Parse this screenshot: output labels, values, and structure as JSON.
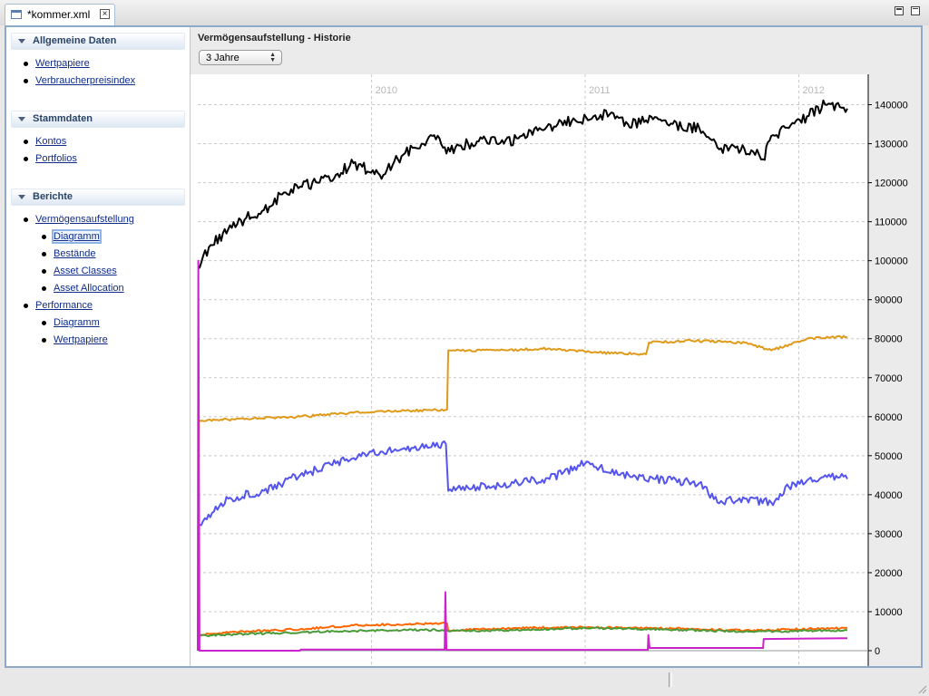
{
  "tab": {
    "label": "*kommer.xml"
  },
  "sidebar": {
    "sections": [
      {
        "label": "Allgemeine Daten",
        "items": [
          {
            "label": "Wertpapiere"
          },
          {
            "label": "Verbraucherpreisindex"
          }
        ]
      },
      {
        "label": "Stammdaten",
        "items": [
          {
            "label": "Kontos"
          },
          {
            "label": "Portfolios"
          }
        ]
      },
      {
        "label": "Berichte",
        "items": [
          {
            "label": "Vermögensaufstellung"
          },
          {
            "label": "Diagramm",
            "selected": true
          },
          {
            "label": "Bestände"
          },
          {
            "label": "Asset Classes"
          },
          {
            "label": "Asset Allocation"
          },
          {
            "label": "Performance"
          },
          {
            "label": "Diagramm"
          },
          {
            "label": "Wertpapiere"
          }
        ]
      }
    ]
  },
  "main": {
    "title": "Vermögensaufstellung - Historie",
    "period_select": {
      "value": "3 Jahre"
    }
  },
  "chart_data": {
    "type": "line",
    "title": "",
    "xlabel": "",
    "ylabel": "",
    "x_range": [
      "2009-03-10",
      "2012-03-24"
    ],
    "ylim": [
      0,
      145000
    ],
    "y_ticks": [
      0,
      10000,
      20000,
      30000,
      40000,
      50000,
      60000,
      70000,
      80000,
      90000,
      100000,
      110000,
      120000,
      130000,
      140000
    ],
    "x_tick_labels": [
      {
        "date": "2010-01-01",
        "label": "2010"
      },
      {
        "date": "2011-01-01",
        "label": "2011"
      },
      {
        "date": "2012-01-01",
        "label": "2012"
      }
    ],
    "grid": true,
    "y_axis_side": "right",
    "series": [
      {
        "color": "#000000",
        "points": [
          [
            "2009-03-10",
            98000
          ],
          [
            "2009-04-01",
            104000
          ],
          [
            "2009-05-01",
            108000
          ],
          [
            "2009-06-01",
            111000
          ],
          [
            "2009-07-01",
            113000
          ],
          [
            "2009-08-01",
            117000
          ],
          [
            "2009-09-01",
            119000
          ],
          [
            "2009-10-01",
            120000
          ],
          [
            "2009-11-01",
            122000
          ],
          [
            "2009-12-01",
            125000
          ],
          [
            "2010-01-15",
            122000
          ],
          [
            "2010-02-15",
            126000
          ],
          [
            "2010-03-15",
            129000
          ],
          [
            "2010-04-15",
            132000
          ],
          [
            "2010-05-15",
            128000
          ],
          [
            "2010-06-15",
            130000
          ],
          [
            "2010-07-15",
            131000
          ],
          [
            "2010-08-15",
            130000
          ],
          [
            "2010-09-15",
            132000
          ],
          [
            "2010-10-15",
            134000
          ],
          [
            "2010-11-15",
            135000
          ],
          [
            "2010-12-15",
            136000
          ],
          [
            "2011-01-15",
            137000
          ],
          [
            "2011-02-15",
            138000
          ],
          [
            "2011-03-15",
            135000
          ],
          [
            "2011-04-15",
            136000
          ],
          [
            "2011-05-15",
            136000
          ],
          [
            "2011-06-15",
            134000
          ],
          [
            "2011-07-15",
            134000
          ],
          [
            "2011-08-15",
            129000
          ],
          [
            "2011-09-15",
            129000
          ],
          [
            "2011-10-15",
            128000
          ],
          [
            "2011-11-01",
            126000
          ],
          [
            "2011-11-15",
            132000
          ],
          [
            "2011-12-15",
            134000
          ],
          [
            "2012-01-15",
            137000
          ],
          [
            "2012-02-15",
            140000
          ],
          [
            "2012-03-24",
            139000
          ]
        ]
      },
      {
        "color": "#e09a1a",
        "points": [
          [
            "2009-03-10",
            0
          ],
          [
            "2009-03-12",
            59000
          ],
          [
            "2009-06-01",
            59500
          ],
          [
            "2009-09-01",
            60000
          ],
          [
            "2009-12-01",
            61000
          ],
          [
            "2010-03-01",
            61500
          ],
          [
            "2010-05-10",
            61800
          ],
          [
            "2010-05-12",
            77000
          ],
          [
            "2010-08-01",
            77000
          ],
          [
            "2010-11-01",
            77500
          ],
          [
            "2011-01-15",
            76500
          ],
          [
            "2011-04-15",
            76000
          ],
          [
            "2011-04-20",
            79000
          ],
          [
            "2011-07-01",
            79500
          ],
          [
            "2011-10-01",
            79000
          ],
          [
            "2011-11-15",
            77000
          ],
          [
            "2012-01-15",
            80000
          ],
          [
            "2012-03-24",
            80500
          ]
        ]
      },
      {
        "color": "#5555ee",
        "points": [
          [
            "2009-03-10",
            32000
          ],
          [
            "2009-05-01",
            39000
          ],
          [
            "2009-07-01",
            41000
          ],
          [
            "2009-09-01",
            45000
          ],
          [
            "2009-11-01",
            48000
          ],
          [
            "2010-01-01",
            51000
          ],
          [
            "2010-03-01",
            51500
          ],
          [
            "2010-05-08",
            53000
          ],
          [
            "2010-05-12",
            41000
          ],
          [
            "2010-07-01",
            42000
          ],
          [
            "2010-09-01",
            43000
          ],
          [
            "2010-11-01",
            44000
          ],
          [
            "2011-01-01",
            48000
          ],
          [
            "2011-03-01",
            45000
          ],
          [
            "2011-05-01",
            44000
          ],
          [
            "2011-07-15",
            43000
          ],
          [
            "2011-08-15",
            38000
          ],
          [
            "2011-10-01",
            39000
          ],
          [
            "2011-11-15",
            38000
          ],
          [
            "2011-12-15",
            42000
          ],
          [
            "2012-02-15",
            45000
          ],
          [
            "2012-03-24",
            44000
          ]
        ]
      },
      {
        "color": "#ff6600",
        "points": [
          [
            "2009-03-10",
            4000
          ],
          [
            "2009-06-01",
            5000
          ],
          [
            "2009-09-01",
            5500
          ],
          [
            "2009-12-01",
            6500
          ],
          [
            "2010-03-01",
            6800
          ],
          [
            "2010-05-10",
            7000
          ],
          [
            "2010-05-12",
            5200
          ],
          [
            "2010-09-01",
            5800
          ],
          [
            "2011-01-01",
            6000
          ],
          [
            "2011-06-01",
            5700
          ],
          [
            "2011-10-01",
            5200
          ],
          [
            "2012-03-24",
            5800
          ]
        ]
      },
      {
        "color": "#4a9a3a",
        "points": [
          [
            "2009-03-10",
            3800
          ],
          [
            "2009-06-01",
            4300
          ],
          [
            "2009-09-01",
            4700
          ],
          [
            "2009-12-01",
            5100
          ],
          [
            "2010-03-01",
            5300
          ],
          [
            "2010-05-10",
            5300
          ],
          [
            "2010-05-12",
            5000
          ],
          [
            "2010-09-01",
            5300
          ],
          [
            "2011-01-01",
            5800
          ],
          [
            "2011-06-01",
            5400
          ],
          [
            "2011-10-01",
            4900
          ],
          [
            "2012-03-24",
            5200
          ]
        ]
      },
      {
        "color": "#cc22cc",
        "points": [
          [
            "2009-03-10",
            0
          ],
          [
            "2009-03-11",
            100000
          ],
          [
            "2009-03-13",
            0
          ],
          [
            "2009-09-01",
            0
          ],
          [
            "2009-09-02",
            300
          ],
          [
            "2010-05-06",
            300
          ],
          [
            "2010-05-07",
            15000
          ],
          [
            "2010-05-09",
            200
          ],
          [
            "2011-04-18",
            200
          ],
          [
            "2011-04-19",
            4000
          ],
          [
            "2011-04-21",
            700
          ],
          [
            "2011-11-01",
            700
          ],
          [
            "2011-11-02",
            3000
          ],
          [
            "2012-03-24",
            3200
          ]
        ]
      }
    ]
  }
}
